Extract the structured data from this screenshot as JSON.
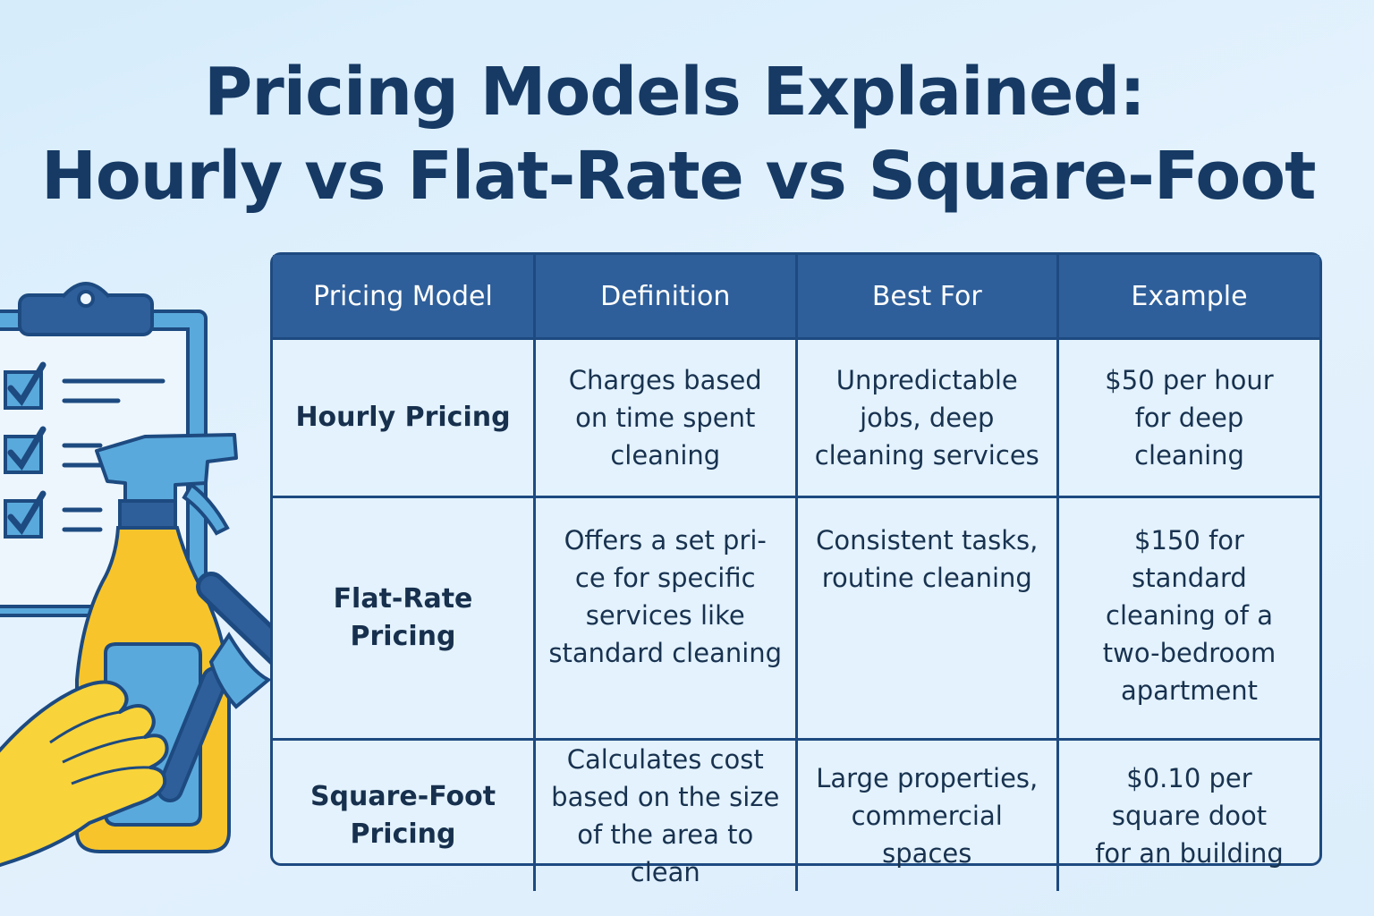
{
  "title": {
    "line1": "Pricing Models Explained:",
    "line2": "Hourly vs Flat-Rate vs Square-Foot"
  },
  "table": {
    "headers": [
      "Pricing Model",
      "Definition",
      "Best For",
      "Example"
    ],
    "rows": [
      {
        "model": "Hourly Pricing",
        "definition": "Charges based\non time spent\ncleaning",
        "best_for": "Unpredictable\njobs, deep\ncleaning services",
        "example": "$50 per hour\nfor deep\ncleaning"
      },
      {
        "model": "Flat-Rate Pricing",
        "definition": "Offers a set pri-\nce for specific\nservices like\nstandard cleaning",
        "best_for": "Consistent tasks,\nroutine cleaning",
        "example": "$150 for\nstandard\ncleaning of a\ntwo-bedroom\napartment"
      },
      {
        "model": "Square-Foot Pricing",
        "definition": "Calculates cost\nbased on the size\nof the area to clean",
        "best_for": "Large properties,\ncommercial\nspaces",
        "example": "$0.10 per\nsquare doot\nfor an building"
      }
    ]
  },
  "illustration": {
    "icons": [
      "clipboard-icon",
      "checkbox-icon",
      "spray-bottle-icon",
      "squeegee-icon",
      "gloved-hand-icon"
    ]
  },
  "colors": {
    "title": "#163a64",
    "header_bg": "#2f5f9a",
    "border": "#1d4a80",
    "cell_bg": "#e3f2fd",
    "bottle": "#f7c52b",
    "glove": "#f8d33a",
    "accent_blue": "#5aa9dc"
  }
}
